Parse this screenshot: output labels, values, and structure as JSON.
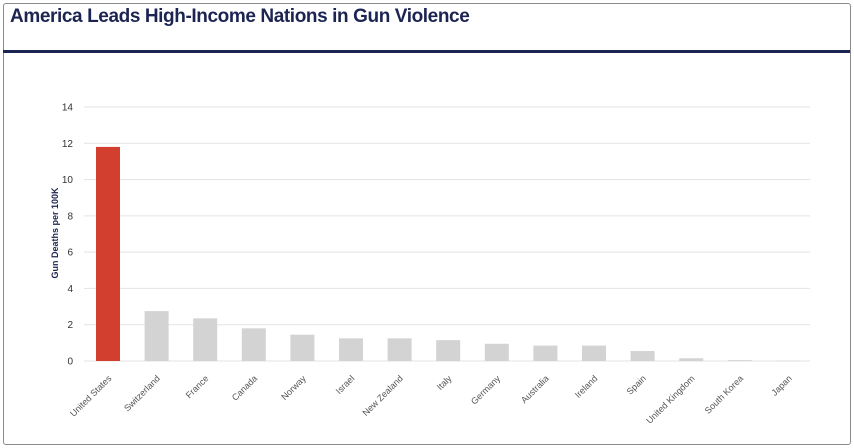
{
  "chart_data": {
    "type": "bar",
    "title": "America Leads High-Income Nations in Gun Violence",
    "xlabel": "",
    "ylabel": "Gun Deaths per 100K",
    "ylim": [
      0,
      14
    ],
    "yticks": [
      0,
      2,
      4,
      6,
      8,
      10,
      12,
      14
    ],
    "grid": true,
    "categories": [
      "United States",
      "Switzerland",
      "France",
      "Canada",
      "Norway",
      "Israel",
      "New Zealand",
      "Italy",
      "Germany",
      "Australia",
      "Ireland",
      "Spain",
      "United Kingdom",
      "South Korea",
      "Japan"
    ],
    "values": [
      11.8,
      2.75,
      2.35,
      1.8,
      1.45,
      1.25,
      1.25,
      1.15,
      0.95,
      0.85,
      0.85,
      0.55,
      0.15,
      0.05,
      0.02
    ],
    "colors": {
      "highlight": "#d33f2e",
      "default": "#d3d3d3",
      "grid": "#e3e3e3",
      "title": "#1c2451"
    }
  }
}
